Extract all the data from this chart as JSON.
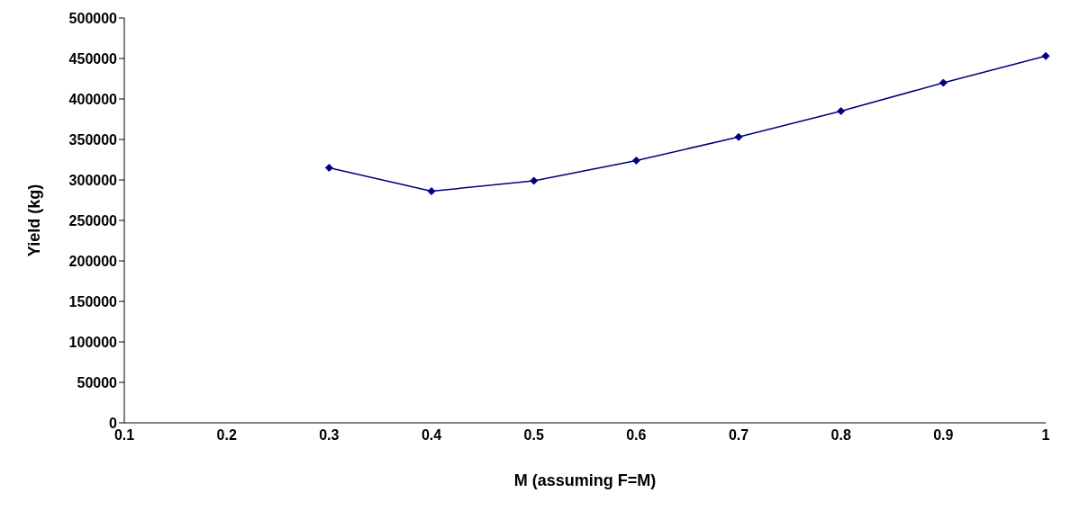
{
  "chart_data": {
    "type": "line",
    "xlabel": "M (assuming F=M)",
    "ylabel": "Yield (kg)",
    "categories": [
      "0.1",
      "0.2",
      "0.3",
      "0.4",
      "0.5",
      "0.6",
      "0.7",
      "0.8",
      "0.9",
      "1"
    ],
    "series": [
      {
        "color": "#000080",
        "values": [
          null,
          null,
          315000,
          286000,
          299000,
          324000,
          353000,
          385000,
          420000,
          453000
        ]
      }
    ],
    "ylim": [
      0,
      500000
    ],
    "yticks": [
      0,
      50000,
      100000,
      150000,
      200000,
      250000,
      300000,
      350000,
      400000,
      450000,
      500000
    ],
    "grid": false,
    "legend": false,
    "marker": "diamond",
    "line_style": "solid"
  }
}
